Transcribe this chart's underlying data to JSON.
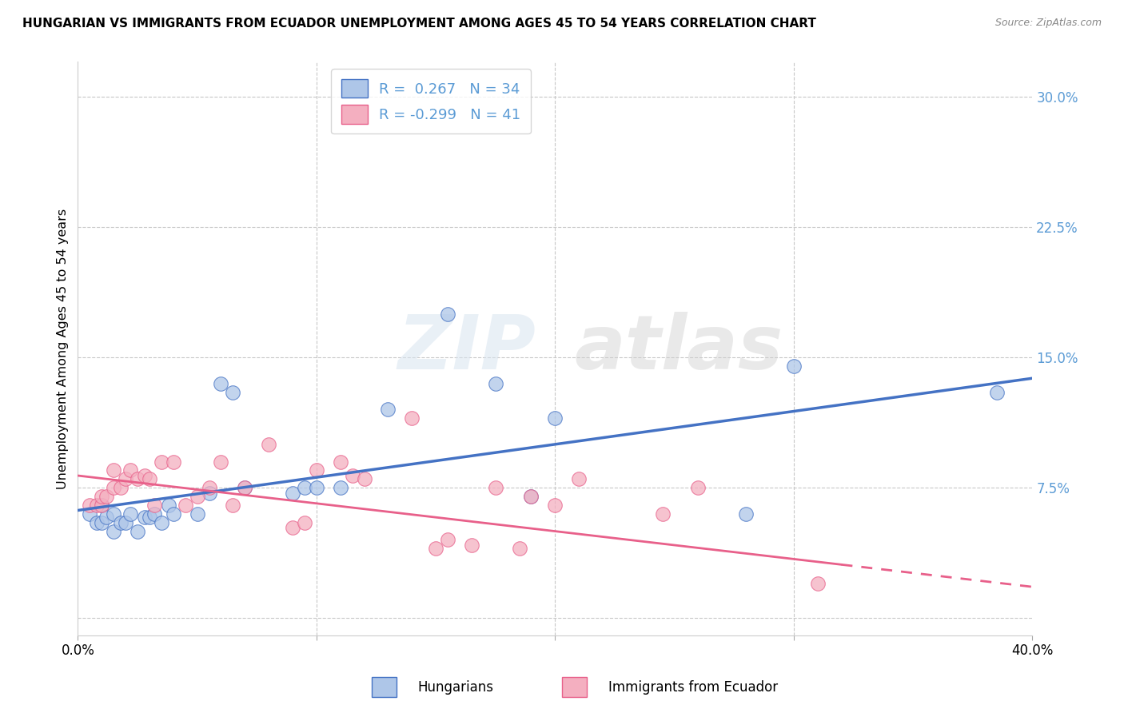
{
  "title": "HUNGARIAN VS IMMIGRANTS FROM ECUADOR UNEMPLOYMENT AMONG AGES 45 TO 54 YEARS CORRELATION CHART",
  "source": "Source: ZipAtlas.com",
  "ylabel": "Unemployment Among Ages 45 to 54 years",
  "xlim": [
    0.0,
    0.4
  ],
  "ylim": [
    -0.01,
    0.32
  ],
  "yticks": [
    0.0,
    0.075,
    0.15,
    0.225,
    0.3
  ],
  "ytick_labels": [
    "",
    "7.5%",
    "15.0%",
    "22.5%",
    "30.0%"
  ],
  "xticks": [
    0.0,
    0.1,
    0.2,
    0.3,
    0.4
  ],
  "xtick_labels": [
    "0.0%",
    "",
    "",
    "",
    "40.0%"
  ],
  "legend_labels": [
    "Hungarians",
    "Immigrants from Ecuador"
  ],
  "R_hungarian": 0.267,
  "N_hungarian": 34,
  "R_ecuador": -0.299,
  "N_ecuador": 41,
  "color_hungarian": "#aec6e8",
  "color_ecuador": "#f4afc0",
  "line_color_hungarian": "#4472c4",
  "line_color_ecuador": "#e8608a",
  "tick_color": "#5b9bd5",
  "hungarian_x": [
    0.005,
    0.008,
    0.01,
    0.01,
    0.012,
    0.015,
    0.015,
    0.018,
    0.02,
    0.022,
    0.025,
    0.028,
    0.03,
    0.032,
    0.035,
    0.038,
    0.04,
    0.05,
    0.055,
    0.06,
    0.065,
    0.07,
    0.09,
    0.095,
    0.1,
    0.11,
    0.13,
    0.155,
    0.175,
    0.19,
    0.2,
    0.28,
    0.3,
    0.385
  ],
  "hungarian_y": [
    0.06,
    0.055,
    0.055,
    0.065,
    0.058,
    0.05,
    0.06,
    0.055,
    0.055,
    0.06,
    0.05,
    0.058,
    0.058,
    0.06,
    0.055,
    0.065,
    0.06,
    0.06,
    0.072,
    0.135,
    0.13,
    0.075,
    0.072,
    0.075,
    0.075,
    0.075,
    0.12,
    0.175,
    0.135,
    0.07,
    0.115,
    0.06,
    0.145,
    0.13
  ],
  "ecuador_x": [
    0.005,
    0.008,
    0.01,
    0.01,
    0.012,
    0.015,
    0.015,
    0.018,
    0.02,
    0.022,
    0.025,
    0.028,
    0.03,
    0.032,
    0.035,
    0.04,
    0.045,
    0.05,
    0.055,
    0.06,
    0.065,
    0.07,
    0.08,
    0.09,
    0.095,
    0.1,
    0.11,
    0.115,
    0.12,
    0.14,
    0.15,
    0.155,
    0.165,
    0.175,
    0.185,
    0.19,
    0.2,
    0.21,
    0.245,
    0.26,
    0.31
  ],
  "ecuador_y": [
    0.065,
    0.065,
    0.065,
    0.07,
    0.07,
    0.075,
    0.085,
    0.075,
    0.08,
    0.085,
    0.08,
    0.082,
    0.08,
    0.065,
    0.09,
    0.09,
    0.065,
    0.07,
    0.075,
    0.09,
    0.065,
    0.075,
    0.1,
    0.052,
    0.055,
    0.085,
    0.09,
    0.082,
    0.08,
    0.115,
    0.04,
    0.045,
    0.042,
    0.075,
    0.04,
    0.07,
    0.065,
    0.08,
    0.06,
    0.075,
    0.02
  ],
  "watermark_zip": "ZIP",
  "watermark_atlas": "atlas",
  "background_color": "#ffffff",
  "grid_color": "#c8c8c8",
  "blue_line_y0": 0.062,
  "blue_line_y1": 0.138,
  "pink_line_y0": 0.082,
  "pink_line_y1": 0.018
}
